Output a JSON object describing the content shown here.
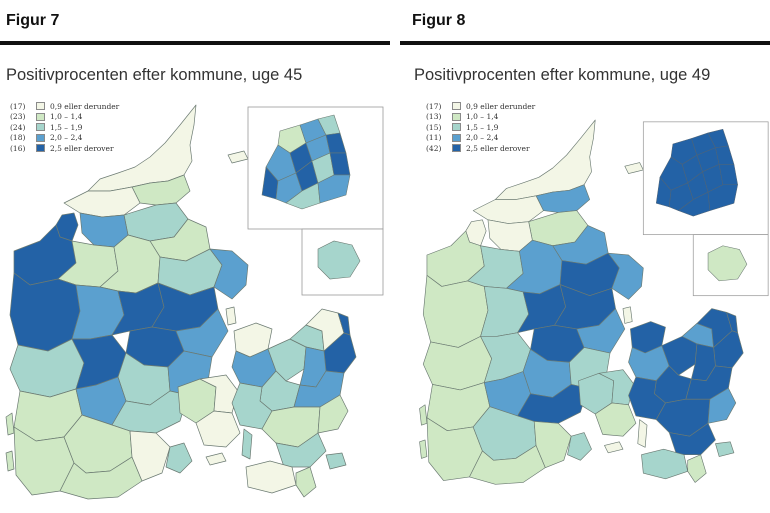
{
  "figures": [
    {
      "figure_label": "Figur 7",
      "title": "Positivprocenten efter kommune, uge 45",
      "legend": [
        {
          "count": "(17)",
          "range": "0,9 eller derunder",
          "color": "#f3f6e6"
        },
        {
          "count": "(23)",
          "range": "1,0 – 1,4",
          "color": "#cfe8c4"
        },
        {
          "count": "(24)",
          "range": "1,5 – 1,9",
          "color": "#a6d5cc"
        },
        {
          "count": "(18)",
          "range": "2,0 – 2,4",
          "color": "#5ba0cf"
        },
        {
          "count": "(16)",
          "range": "2,5 eller derover",
          "color": "#2362a6"
        }
      ]
    },
    {
      "figure_label": "Figur 8",
      "title": "Positivprocenten efter kommune, uge 49",
      "legend": [
        {
          "count": "(17)",
          "range": "0,9 eller derunder",
          "color": "#f3f6e6"
        },
        {
          "count": "(13)",
          "range": "1,0 – 1,4",
          "color": "#cfe8c4"
        },
        {
          "count": "(15)",
          "range": "1,5 – 1,9",
          "color": "#a6d5cc"
        },
        {
          "count": "(11)",
          "range": "2,0 – 2,4",
          "color": "#5ba0cf"
        },
        {
          "count": "(42)",
          "range": "2,5 eller derover",
          "color": "#2362a6"
        }
      ]
    }
  ],
  "palette": {
    "class_0": "#f3f6e6",
    "class_1": "#cfe8c4",
    "class_2": "#a6d5cc",
    "class_3": "#5ba0cf",
    "class_4": "#2362a6",
    "border": "#6b7a72",
    "inset_frame": "#9a9a9a"
  }
}
